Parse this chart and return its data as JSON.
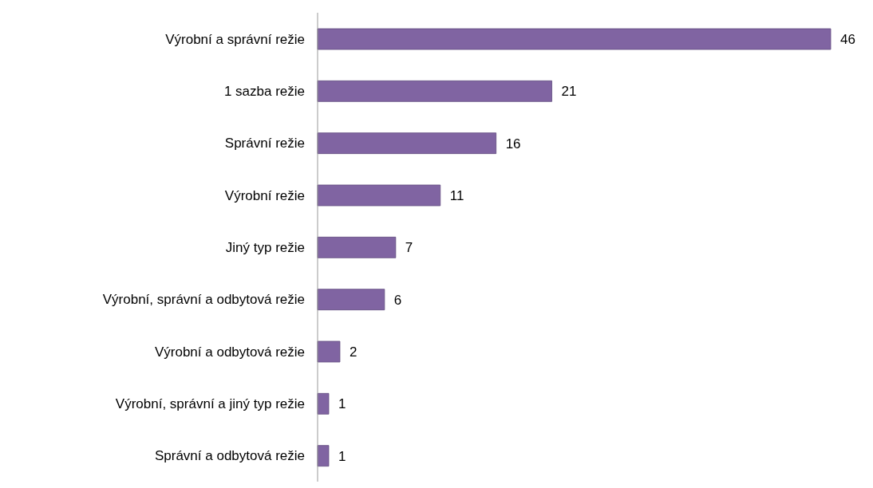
{
  "chart_data": {
    "type": "bar",
    "orientation": "horizontal",
    "categories": [
      "Výrobní a správní režie",
      "1 sazba režie",
      "Správní režie",
      "Výrobní režie",
      "Jiný typ režie",
      "Výrobní, správní a odbytová režie",
      "Výrobní a odbytová režie",
      "Výrobní, správní a jiný typ režie",
      "Správní a odbytová režie"
    ],
    "values": [
      46,
      21,
      16,
      11,
      7,
      6,
      2,
      1,
      1
    ],
    "color": "#8064a2",
    "data_labels": true
  }
}
